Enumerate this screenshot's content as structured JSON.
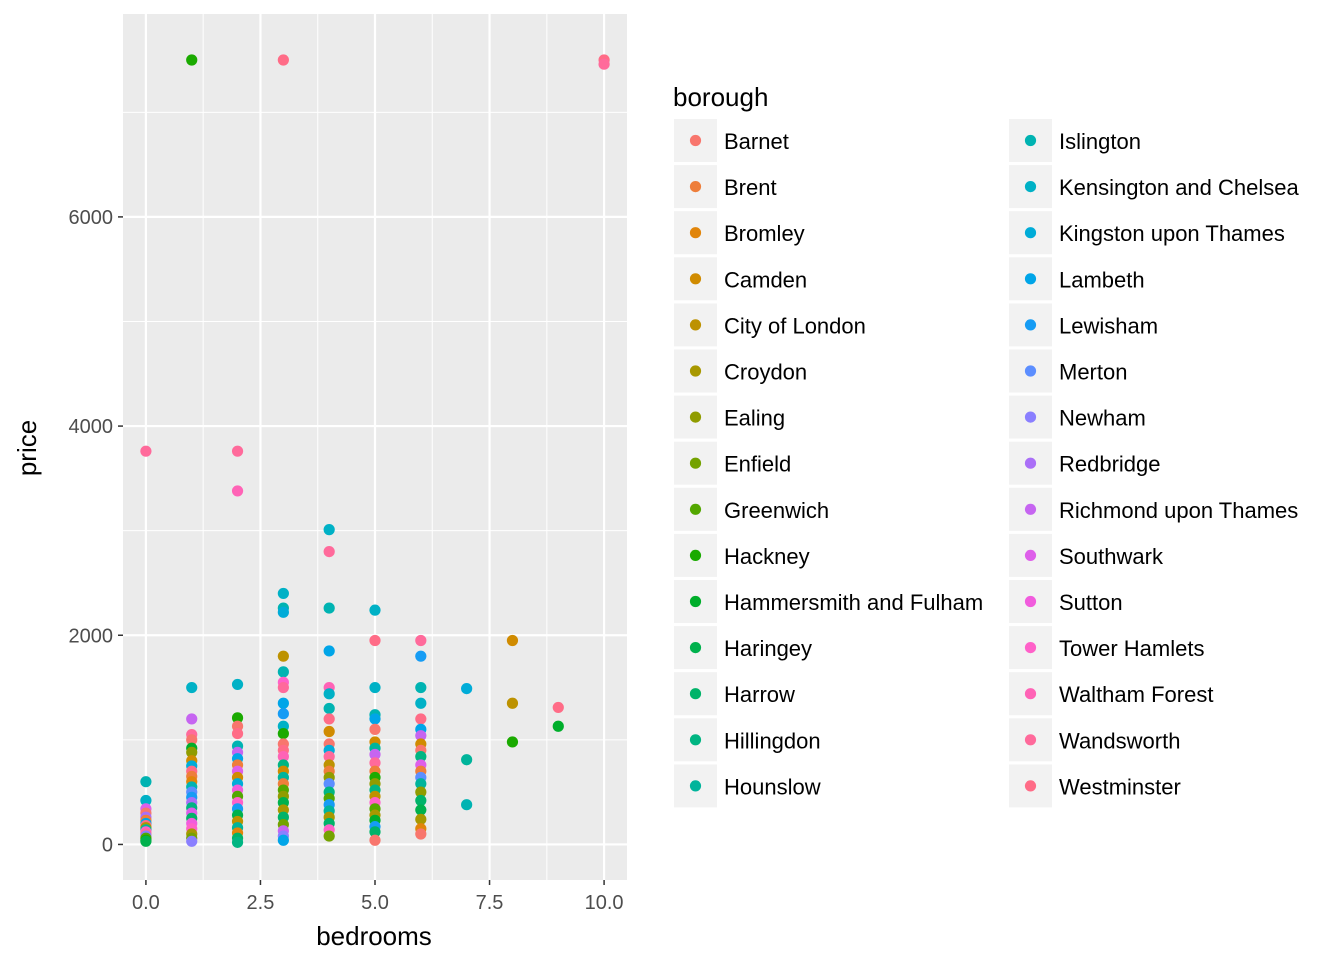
{
  "chart_data": {
    "type": "scatter",
    "title": "",
    "xlabel": "bedrooms",
    "ylabel": "price",
    "xlim": [
      -0.5,
      10.5
    ],
    "ylim": [
      -340,
      7940
    ],
    "x_ticks": [
      0,
      2.5,
      5,
      7.5,
      10
    ],
    "x_tick_labels": [
      "0.0",
      "2.5",
      "5.0",
      "7.5",
      "10.0"
    ],
    "y_ticks": [
      0,
      2000,
      4000,
      6000
    ],
    "y_tick_labels": [
      "0",
      "2000",
      "4000",
      "6000"
    ],
    "grid": true,
    "legend": {
      "title": "borough",
      "placement": "right",
      "columns": 2,
      "entries": [
        {
          "name": "Barnet",
          "color": "#F8766D"
        },
        {
          "name": "Brent",
          "color": "#EE7E3B"
        },
        {
          "name": "Bromley",
          "color": "#E1850A"
        },
        {
          "name": "Camden",
          "color": "#D08B00"
        },
        {
          "name": "City of London",
          "color": "#BD9200"
        },
        {
          "name": "Croydon",
          "color": "#A89800"
        },
        {
          "name": "Ealing",
          "color": "#909C00"
        },
        {
          "name": "Enfield",
          "color": "#74A200"
        },
        {
          "name": "Greenwich",
          "color": "#53A700"
        },
        {
          "name": "Hackney",
          "color": "#1AAA00"
        },
        {
          "name": "Hammersmith and Fulham",
          "color": "#00AE2B"
        },
        {
          "name": "Haringey",
          "color": "#00B14D"
        },
        {
          "name": "Harrow",
          "color": "#00B369"
        },
        {
          "name": "Hillingdon",
          "color": "#00B582"
        },
        {
          "name": "Hounslow",
          "color": "#00B49B"
        },
        {
          "name": "Islington",
          "color": "#00B3B2"
        },
        {
          "name": "Kensington and Chelsea",
          "color": "#00B1C6"
        },
        {
          "name": "Kingston upon Thames",
          "color": "#00ACD8"
        },
        {
          "name": "Lambeth",
          "color": "#00A5E8"
        },
        {
          "name": "Lewisham",
          "color": "#169CF4"
        },
        {
          "name": "Merton",
          "color": "#5C8EFF"
        },
        {
          "name": "Newham",
          "color": "#8A7FFF"
        },
        {
          "name": "Redbridge",
          "color": "#AA6FF7"
        },
        {
          "name": "Richmond upon Thames",
          "color": "#C665F1"
        },
        {
          "name": "Southwark",
          "color": "#DE5FEA"
        },
        {
          "name": "Sutton",
          "color": "#F15CDD"
        },
        {
          "name": "Tower Hamlets",
          "color": "#FF61C9"
        },
        {
          "name": "Waltham Forest",
          "color": "#FF63B6"
        },
        {
          "name": "Wandsworth",
          "color": "#FF6A9B"
        },
        {
          "name": "Westminster",
          "color": "#FF6C87"
        }
      ]
    },
    "points": [
      {
        "x": 0,
        "y": 3760,
        "borough": "Wandsworth"
      },
      {
        "x": 0,
        "y": 600,
        "borough": "Islington"
      },
      {
        "x": 0,
        "y": 420,
        "borough": "Kensington and Chelsea"
      },
      {
        "x": 0,
        "y": 340,
        "borough": "Southwark"
      },
      {
        "x": 0,
        "y": 300,
        "borough": "Barnet"
      },
      {
        "x": 0,
        "y": 260,
        "borough": "Redbridge"
      },
      {
        "x": 0,
        "y": 230,
        "borough": "Brent"
      },
      {
        "x": 0,
        "y": 200,
        "borough": "Lambeth"
      },
      {
        "x": 0,
        "y": 180,
        "borough": "Westminster"
      },
      {
        "x": 0,
        "y": 160,
        "borough": "Croydon"
      },
      {
        "x": 0,
        "y": 140,
        "borough": "Hounslow"
      },
      {
        "x": 0,
        "y": 120,
        "borough": "Tower Hamlets"
      },
      {
        "x": 0,
        "y": 100,
        "borough": "Wandsworth"
      },
      {
        "x": 0,
        "y": 80,
        "borough": "Newham"
      },
      {
        "x": 0,
        "y": 60,
        "borough": "Greenwich"
      },
      {
        "x": 0,
        "y": 40,
        "borough": "Hackney"
      },
      {
        "x": 0,
        "y": 30,
        "borough": "Haringey"
      },
      {
        "x": 1,
        "y": 7500,
        "borough": "Hackney"
      },
      {
        "x": 1,
        "y": 1500,
        "borough": "Kensington and Chelsea"
      },
      {
        "x": 1,
        "y": 1200,
        "borough": "Richmond upon Thames"
      },
      {
        "x": 1,
        "y": 1050,
        "borough": "Wandsworth"
      },
      {
        "x": 1,
        "y": 1000,
        "borough": "Barnet"
      },
      {
        "x": 1,
        "y": 920,
        "borough": "Hammersmith and Fulham"
      },
      {
        "x": 1,
        "y": 880,
        "borough": "Ealing"
      },
      {
        "x": 1,
        "y": 800,
        "borough": "Camden"
      },
      {
        "x": 1,
        "y": 750,
        "borough": "Kingston upon Thames"
      },
      {
        "x": 1,
        "y": 700,
        "borough": "Westminster"
      },
      {
        "x": 1,
        "y": 650,
        "borough": "Brent"
      },
      {
        "x": 1,
        "y": 600,
        "borough": "Bromley"
      },
      {
        "x": 1,
        "y": 550,
        "borough": "Islington"
      },
      {
        "x": 1,
        "y": 500,
        "borough": "Merton"
      },
      {
        "x": 1,
        "y": 450,
        "borough": "Lewisham"
      },
      {
        "x": 1,
        "y": 400,
        "borough": "Redbridge"
      },
      {
        "x": 1,
        "y": 350,
        "borough": "Hillingdon"
      },
      {
        "x": 1,
        "y": 300,
        "borough": "Southwark"
      },
      {
        "x": 1,
        "y": 250,
        "borough": "Harrow"
      },
      {
        "x": 1,
        "y": 200,
        "borough": "Sutton"
      },
      {
        "x": 1,
        "y": 150,
        "borough": "Tower Hamlets"
      },
      {
        "x": 1,
        "y": 100,
        "borough": "Croydon"
      },
      {
        "x": 1,
        "y": 60,
        "borough": "Enfield"
      },
      {
        "x": 1,
        "y": 30,
        "borough": "Newham"
      },
      {
        "x": 2,
        "y": 3760,
        "borough": "Wandsworth"
      },
      {
        "x": 2,
        "y": 3380,
        "borough": "Waltham Forest"
      },
      {
        "x": 2,
        "y": 1530,
        "borough": "Kensington and Chelsea"
      },
      {
        "x": 2,
        "y": 1210,
        "borough": "Hackney"
      },
      {
        "x": 2,
        "y": 1130,
        "borough": "Barnet"
      },
      {
        "x": 2,
        "y": 1060,
        "borough": "Westminster"
      },
      {
        "x": 2,
        "y": 940,
        "borough": "Islington"
      },
      {
        "x": 2,
        "y": 880,
        "borough": "Richmond upon Thames"
      },
      {
        "x": 2,
        "y": 820,
        "borough": "Lambeth"
      },
      {
        "x": 2,
        "y": 760,
        "borough": "Brent"
      },
      {
        "x": 2,
        "y": 700,
        "borough": "Southwark"
      },
      {
        "x": 2,
        "y": 640,
        "borough": "Camden"
      },
      {
        "x": 2,
        "y": 580,
        "borough": "Kingston upon Thames"
      },
      {
        "x": 2,
        "y": 520,
        "borough": "Sutton"
      },
      {
        "x": 2,
        "y": 460,
        "borough": "Greenwich"
      },
      {
        "x": 2,
        "y": 400,
        "borough": "Tower Hamlets"
      },
      {
        "x": 2,
        "y": 340,
        "borough": "Lewisham"
      },
      {
        "x": 2,
        "y": 280,
        "borough": "Haringey"
      },
      {
        "x": 2,
        "y": 220,
        "borough": "City of London"
      },
      {
        "x": 2,
        "y": 160,
        "borough": "Hounslow"
      },
      {
        "x": 2,
        "y": 110,
        "borough": "Bromley"
      },
      {
        "x": 2,
        "y": 60,
        "borough": "Harrow"
      },
      {
        "x": 2,
        "y": 20,
        "borough": "Hillingdon"
      },
      {
        "x": 3,
        "y": 7500,
        "borough": "Westminster"
      },
      {
        "x": 3,
        "y": 2400,
        "borough": "Kensington and Chelsea"
      },
      {
        "x": 3,
        "y": 2260,
        "borough": "Islington"
      },
      {
        "x": 3,
        "y": 2220,
        "borough": "Kingston upon Thames"
      },
      {
        "x": 3,
        "y": 1800,
        "borough": "City of London"
      },
      {
        "x": 3,
        "y": 1650,
        "borough": "Islington"
      },
      {
        "x": 3,
        "y": 1550,
        "borough": "Tower Hamlets"
      },
      {
        "x": 3,
        "y": 1500,
        "borough": "Wandsworth"
      },
      {
        "x": 3,
        "y": 1350,
        "borough": "Lambeth"
      },
      {
        "x": 3,
        "y": 1250,
        "borough": "Lewisham"
      },
      {
        "x": 3,
        "y": 1130,
        "borough": "Kensington and Chelsea"
      },
      {
        "x": 3,
        "y": 1060,
        "borough": "Hackney"
      },
      {
        "x": 3,
        "y": 960,
        "borough": "Barnet"
      },
      {
        "x": 3,
        "y": 900,
        "borough": "Westminster"
      },
      {
        "x": 3,
        "y": 840,
        "borough": "Waltham Forest"
      },
      {
        "x": 3,
        "y": 760,
        "borough": "Hillingdon"
      },
      {
        "x": 3,
        "y": 700,
        "borough": "Camden"
      },
      {
        "x": 3,
        "y": 640,
        "borough": "Hounslow"
      },
      {
        "x": 3,
        "y": 580,
        "borough": "Brent"
      },
      {
        "x": 3,
        "y": 520,
        "borough": "Greenwich"
      },
      {
        "x": 3,
        "y": 460,
        "borough": "Ealing"
      },
      {
        "x": 3,
        "y": 400,
        "borough": "Haringey"
      },
      {
        "x": 3,
        "y": 330,
        "borough": "Croydon"
      },
      {
        "x": 3,
        "y": 260,
        "borough": "Harrow"
      },
      {
        "x": 3,
        "y": 190,
        "borough": "Enfield"
      },
      {
        "x": 3,
        "y": 130,
        "borough": "Richmond upon Thames"
      },
      {
        "x": 3,
        "y": 80,
        "borough": "Newham"
      },
      {
        "x": 3,
        "y": 40,
        "borough": "Lambeth"
      },
      {
        "x": 4,
        "y": 3010,
        "borough": "Kensington and Chelsea"
      },
      {
        "x": 4,
        "y": 2800,
        "borough": "Wandsworth"
      },
      {
        "x": 4,
        "y": 2260,
        "borough": "Islington"
      },
      {
        "x": 4,
        "y": 1850,
        "borough": "Lambeth"
      },
      {
        "x": 4,
        "y": 1500,
        "borough": "Waltham Forest"
      },
      {
        "x": 4,
        "y": 1440,
        "borough": "Kensington and Chelsea"
      },
      {
        "x": 4,
        "y": 1300,
        "borough": "Islington"
      },
      {
        "x": 4,
        "y": 1200,
        "borough": "Westminster"
      },
      {
        "x": 4,
        "y": 1080,
        "borough": "Camden"
      },
      {
        "x": 4,
        "y": 960,
        "borough": "Barnet"
      },
      {
        "x": 4,
        "y": 900,
        "borough": "Kingston upon Thames"
      },
      {
        "x": 4,
        "y": 840,
        "borough": "Wandsworth"
      },
      {
        "x": 4,
        "y": 760,
        "borough": "City of London"
      },
      {
        "x": 4,
        "y": 700,
        "borough": "Brent"
      },
      {
        "x": 4,
        "y": 640,
        "borough": "Ealing"
      },
      {
        "x": 4,
        "y": 580,
        "borough": "Merton"
      },
      {
        "x": 4,
        "y": 500,
        "borough": "Hillingdon"
      },
      {
        "x": 4,
        "y": 440,
        "borough": "Greenwich"
      },
      {
        "x": 4,
        "y": 380,
        "borough": "Lewisham"
      },
      {
        "x": 4,
        "y": 320,
        "borough": "Hounslow"
      },
      {
        "x": 4,
        "y": 260,
        "borough": "Croydon"
      },
      {
        "x": 4,
        "y": 200,
        "borough": "Harrow"
      },
      {
        "x": 4,
        "y": 140,
        "borough": "Tower Hamlets"
      },
      {
        "x": 4,
        "y": 80,
        "borough": "Enfield"
      },
      {
        "x": 5,
        "y": 2240,
        "borough": "Kensington and Chelsea"
      },
      {
        "x": 5,
        "y": 1950,
        "borough": "Westminster"
      },
      {
        "x": 5,
        "y": 1500,
        "borough": "Kensington and Chelsea"
      },
      {
        "x": 5,
        "y": 1240,
        "borough": "Islington"
      },
      {
        "x": 5,
        "y": 1200,
        "borough": "Lambeth"
      },
      {
        "x": 5,
        "y": 1100,
        "borough": "Barnet"
      },
      {
        "x": 5,
        "y": 980,
        "borough": "Camden"
      },
      {
        "x": 5,
        "y": 920,
        "borough": "Hounslow"
      },
      {
        "x": 5,
        "y": 860,
        "borough": "Richmond upon Thames"
      },
      {
        "x": 5,
        "y": 780,
        "borough": "Wandsworth"
      },
      {
        "x": 5,
        "y": 700,
        "borough": "Brent"
      },
      {
        "x": 5,
        "y": 640,
        "borough": "Hackney"
      },
      {
        "x": 5,
        "y": 580,
        "borough": "Ealing"
      },
      {
        "x": 5,
        "y": 520,
        "borough": "Hillingdon"
      },
      {
        "x": 5,
        "y": 460,
        "borough": "City of London"
      },
      {
        "x": 5,
        "y": 400,
        "borough": "Tower Hamlets"
      },
      {
        "x": 5,
        "y": 340,
        "borough": "Greenwich"
      },
      {
        "x": 5,
        "y": 280,
        "borough": "Croydon"
      },
      {
        "x": 5,
        "y": 230,
        "borough": "Hammersmith and Fulham"
      },
      {
        "x": 5,
        "y": 170,
        "borough": "Lewisham"
      },
      {
        "x": 5,
        "y": 120,
        "borough": "Harrow"
      },
      {
        "x": 5,
        "y": 40,
        "borough": "Barnet"
      },
      {
        "x": 6,
        "y": 1950,
        "borough": "Wandsworth"
      },
      {
        "x": 6,
        "y": 1800,
        "borough": "Lewisham"
      },
      {
        "x": 6,
        "y": 1500,
        "borough": "Islington"
      },
      {
        "x": 6,
        "y": 1350,
        "borough": "Kensington and Chelsea"
      },
      {
        "x": 6,
        "y": 1200,
        "borough": "Westminster"
      },
      {
        "x": 6,
        "y": 1100,
        "borough": "Lambeth"
      },
      {
        "x": 6,
        "y": 1040,
        "borough": "Richmond upon Thames"
      },
      {
        "x": 6,
        "y": 960,
        "borough": "Camden"
      },
      {
        "x": 6,
        "y": 900,
        "borough": "Barnet"
      },
      {
        "x": 6,
        "y": 840,
        "borough": "Hillingdon"
      },
      {
        "x": 6,
        "y": 760,
        "borough": "Southwark"
      },
      {
        "x": 6,
        "y": 700,
        "borough": "Brent"
      },
      {
        "x": 6,
        "y": 640,
        "borough": "Merton"
      },
      {
        "x": 6,
        "y": 580,
        "borough": "Hounslow"
      },
      {
        "x": 6,
        "y": 500,
        "borough": "Ealing"
      },
      {
        "x": 6,
        "y": 420,
        "borough": "Harrow"
      },
      {
        "x": 6,
        "y": 330,
        "borough": "Haringey"
      },
      {
        "x": 6,
        "y": 240,
        "borough": "Croydon"
      },
      {
        "x": 6,
        "y": 150,
        "borough": "Bromley"
      },
      {
        "x": 6,
        "y": 100,
        "borough": "Barnet"
      },
      {
        "x": 7,
        "y": 1490,
        "borough": "Kingston upon Thames"
      },
      {
        "x": 7,
        "y": 810,
        "borough": "Hounslow"
      },
      {
        "x": 7,
        "y": 380,
        "borough": "Islington"
      },
      {
        "x": 8,
        "y": 1950,
        "borough": "Camden"
      },
      {
        "x": 8,
        "y": 1350,
        "borough": "City of London"
      },
      {
        "x": 8,
        "y": 980,
        "borough": "Hackney"
      },
      {
        "x": 9,
        "y": 1310,
        "borough": "Westminster"
      },
      {
        "x": 9,
        "y": 1130,
        "borough": "Hammersmith and Fulham"
      },
      {
        "x": 10,
        "y": 7500,
        "borough": "Westminster"
      },
      {
        "x": 10,
        "y": 7460,
        "borough": "Wandsworth"
      }
    ]
  }
}
